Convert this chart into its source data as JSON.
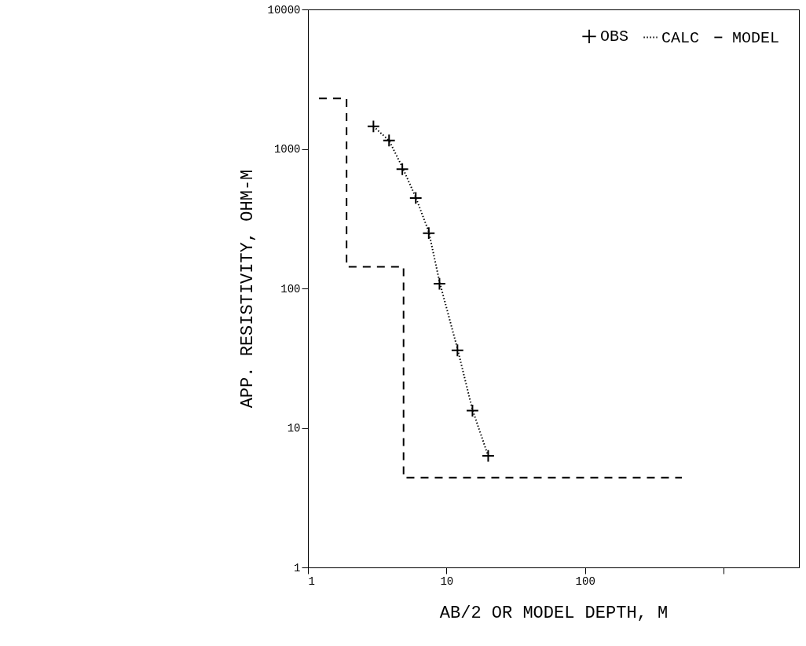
{
  "chart_data": {
    "type": "line",
    "xlabel": "AB/2 OR MODEL DEPTH, M",
    "ylabel": "APP. RESISTIVITY, OHM-M",
    "log": "xy",
    "xlim": [
      1,
      3500
    ],
    "ylim": [
      1,
      10000
    ],
    "xticks": [
      1,
      10,
      100,
      {
        "value": 1000,
        "label": null
      }
    ],
    "yticks": [
      1,
      10,
      100,
      1000,
      10000
    ],
    "grid": false,
    "legend": "top right",
    "series": [
      {
        "name": "OBS",
        "type": "scatter",
        "marker": "cross",
        "color": "#000000",
        "x": [
          2.97,
          3.85,
          4.8,
          6.0,
          7.45,
          8.9,
          12.0,
          15.4,
          20
        ],
        "values": [
          1450,
          1150,
          716,
          445,
          249,
          108,
          36,
          13.3,
          6.3
        ]
      },
      {
        "name": "CALC",
        "line_style": "dotted",
        "color": "#000000",
        "x": [
          2.97,
          3.85,
          4.8,
          6.0,
          7.45,
          8.9,
          12.0,
          15.4,
          20
        ],
        "values": [
          1450,
          1150,
          740,
          450,
          255,
          112,
          37,
          13.5,
          6.3
        ]
      },
      {
        "name": "MODEL",
        "line_style": "dashed",
        "color": "#000000",
        "x": [
          1.2,
          1.9,
          1.9,
          4.9,
          4.9,
          500
        ],
        "values": [
          2300,
          2300,
          143,
          143,
          4.4,
          4.4
        ]
      }
    ]
  }
}
